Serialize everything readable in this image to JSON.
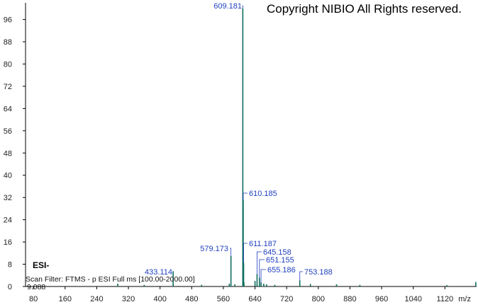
{
  "copyright": "Copyright NIBIO All Rights reserved.",
  "mode": "ESI-",
  "scan_filter": "Scan Filter: FTMS - p ESI Full ms [100.00-2000.00]",
  "noise_level": "9.088",
  "colors": {
    "trace": "#0f6e5e",
    "peak_label": "#1f3fbf",
    "axis": "#000000"
  },
  "chart_data": {
    "type": "line",
    "title": "",
    "xlabel": "m/z",
    "ylabel": "",
    "xlim": [
      60,
      1200
    ],
    "ylim": [
      0,
      102
    ],
    "x_ticks": [
      80,
      160,
      240,
      320,
      400,
      480,
      560,
      640,
      720,
      800,
      880,
      960,
      1040,
      1120
    ],
    "y_ticks": [
      0,
      8,
      16,
      24,
      32,
      40,
      48,
      56,
      64,
      72,
      80,
      88,
      96
    ],
    "grid": false,
    "peaks": [
      {
        "mz": 609.181,
        "intensity": 100,
        "label": "609.181"
      },
      {
        "mz": 610.185,
        "intensity": 31,
        "label": "610.185"
      },
      {
        "mz": 579.173,
        "intensity": 11,
        "label": "579.173"
      },
      {
        "mz": 611.187,
        "intensity": 8.5,
        "label": "611.187"
      },
      {
        "mz": 645.158,
        "intensity": 4.5,
        "label": "645.158"
      },
      {
        "mz": 651.155,
        "intensity": 3.2,
        "label": "651.155"
      },
      {
        "mz": 655.186,
        "intensity": 1.5,
        "label": "655.186"
      },
      {
        "mz": 753.188,
        "intensity": 2.2,
        "label": "753.188"
      },
      {
        "mz": 433.114,
        "intensity": 5.5,
        "label": "433.114"
      },
      {
        "mz": 640.0,
        "intensity": 2.0,
        "label": ""
      },
      {
        "mz": 612.0,
        "intensity": 1.5,
        "label": ""
      },
      {
        "mz": 575.0,
        "intensity": 1.0,
        "label": ""
      },
      {
        "mz": 589.0,
        "intensity": 0.8,
        "label": ""
      },
      {
        "mz": 662.0,
        "intensity": 1.0,
        "label": ""
      },
      {
        "mz": 669.0,
        "intensity": 0.8,
        "label": ""
      },
      {
        "mz": 690.0,
        "intensity": 0.6,
        "label": ""
      },
      {
        "mz": 780.0,
        "intensity": 0.9,
        "label": ""
      },
      {
        "mz": 846.0,
        "intensity": 0.8,
        "label": ""
      },
      {
        "mz": 905.0,
        "intensity": 0.6,
        "label": ""
      },
      {
        "mz": 1125.0,
        "intensity": 0.5,
        "label": ""
      },
      {
        "mz": 1198.0,
        "intensity": 1.6,
        "label": ""
      },
      {
        "mz": 293.0,
        "intensity": 1.0,
        "label": ""
      },
      {
        "mz": 360.0,
        "intensity": 0.6,
        "label": ""
      },
      {
        "mz": 505.0,
        "intensity": 0.6,
        "label": ""
      }
    ]
  }
}
